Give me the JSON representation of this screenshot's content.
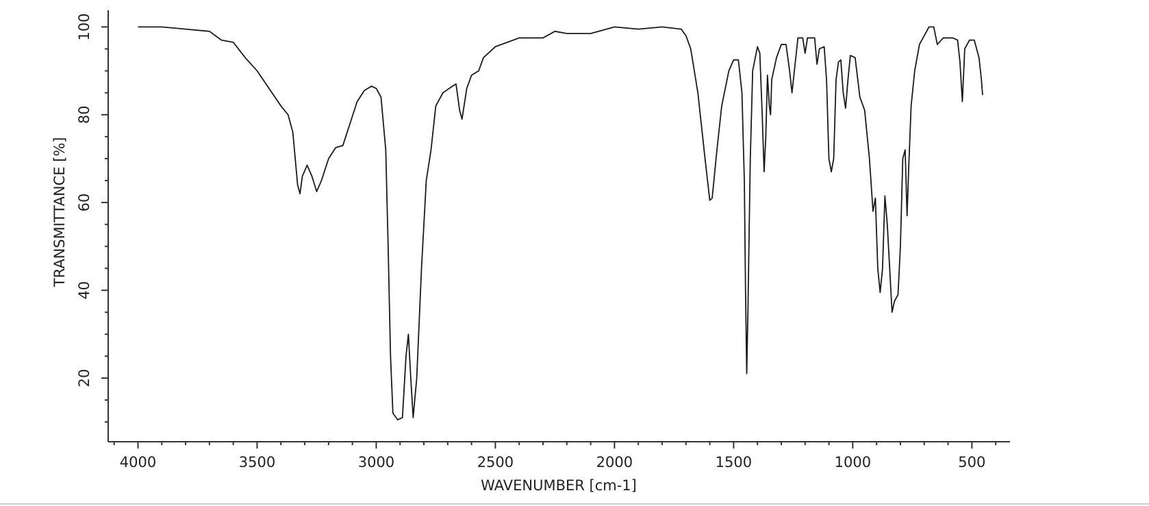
{
  "chart_data": {
    "type": "line",
    "x_label": "WAVENUMBER [cm-1]",
    "y_label": "TRANSMITTANCE [%]",
    "xlim": [
      4125,
      340
    ],
    "ylim": [
      5.5,
      103.8
    ],
    "xticks": [
      4000,
      3500,
      3000,
      2500,
      2000,
      1500,
      1000,
      500
    ],
    "yticks": [
      20,
      40,
      60,
      80,
      100
    ],
    "xminorticks": [
      4100,
      3900,
      3800,
      3700,
      3600,
      3400,
      3300,
      3200,
      3100,
      2900,
      2800,
      2700,
      2600,
      2400,
      2300,
      2200,
      2100,
      1900,
      1800,
      1700,
      1600,
      1400,
      1300,
      1200,
      1100,
      900,
      800,
      700,
      600,
      400
    ],
    "yminorticks": [
      10,
      15,
      25,
      30,
      35,
      45,
      50,
      55,
      65,
      70,
      75,
      85,
      90,
      95
    ],
    "color": "#1a1a1a",
    "x": [
      4000,
      3900,
      3800,
      3700,
      3650,
      3600,
      3550,
      3500,
      3450,
      3400,
      3370,
      3350,
      3340,
      3330,
      3320,
      3310,
      3290,
      3270,
      3250,
      3230,
      3200,
      3170,
      3140,
      3110,
      3080,
      3050,
      3020,
      3000,
      2980,
      2960,
      2950,
      2940,
      2930,
      2910,
      2890,
      2875,
      2865,
      2855,
      2845,
      2830,
      2810,
      2790,
      2770,
      2750,
      2720,
      2680,
      2665,
      2650,
      2640,
      2620,
      2600,
      2570,
      2550,
      2500,
      2450,
      2400,
      2300,
      2250,
      2200,
      2100,
      2000,
      1900,
      1800,
      1720,
      1700,
      1680,
      1650,
      1620,
      1600,
      1590,
      1570,
      1550,
      1520,
      1500,
      1480,
      1465,
      1455,
      1450,
      1445,
      1440,
      1430,
      1420,
      1400,
      1390,
      1380,
      1372,
      1365,
      1358,
      1350,
      1345,
      1340,
      1320,
      1300,
      1280,
      1265,
      1255,
      1245,
      1230,
      1210,
      1200,
      1190,
      1160,
      1150,
      1140,
      1120,
      1110,
      1100,
      1090,
      1080,
      1070,
      1060,
      1050,
      1040,
      1030,
      1020,
      1010,
      990,
      970,
      950,
      930,
      915,
      905,
      895,
      885,
      875,
      865,
      855,
      845,
      835,
      825,
      810,
      800,
      790,
      780,
      772,
      765,
      755,
      740,
      720,
      700,
      680,
      660,
      645,
      620,
      600,
      580,
      560,
      550,
      540,
      530,
      510,
      490,
      470,
      460,
      455
    ],
    "y": [
      100,
      100,
      99.5,
      99,
      97,
      96.5,
      93,
      90,
      86,
      82,
      80,
      76,
      70,
      64,
      62,
      66,
      68.5,
      66,
      62.5,
      65,
      70,
      72.5,
      73,
      78,
      83,
      85.5,
      86.5,
      86,
      84,
      72,
      50,
      25,
      12,
      10.5,
      11,
      25,
      30,
      20,
      11,
      20,
      45,
      65,
      72,
      82,
      85,
      86.5,
      87,
      81,
      79,
      86,
      89,
      90,
      93,
      95.5,
      96.5,
      97.5,
      97.5,
      99,
      98.5,
      98.5,
      100,
      99.5,
      100,
      99.5,
      98,
      95,
      85,
      70,
      60.5,
      61,
      72,
      82,
      90,
      92.5,
      92.5,
      85,
      65,
      40,
      21,
      35,
      70,
      90,
      95.5,
      94,
      80,
      67,
      75,
      89,
      82,
      80,
      88,
      93,
      96,
      96,
      90,
      85,
      90,
      97.5,
      97.5,
      94,
      97.5,
      97.5,
      91.5,
      95,
      95.5,
      88,
      70,
      67,
      70,
      88,
      92,
      92.5,
      85,
      81.5,
      88,
      93.5,
      93,
      84,
      81,
      70,
      58,
      61,
      45,
      39.5,
      45,
      61.5,
      55,
      45,
      35,
      37.5,
      39,
      50,
      70,
      72,
      57,
      68,
      82,
      90,
      96,
      98,
      100,
      100,
      96,
      97.5,
      97.5,
      97.5,
      97,
      92,
      83,
      95,
      97,
      97,
      93,
      88,
      84.5
    ]
  }
}
